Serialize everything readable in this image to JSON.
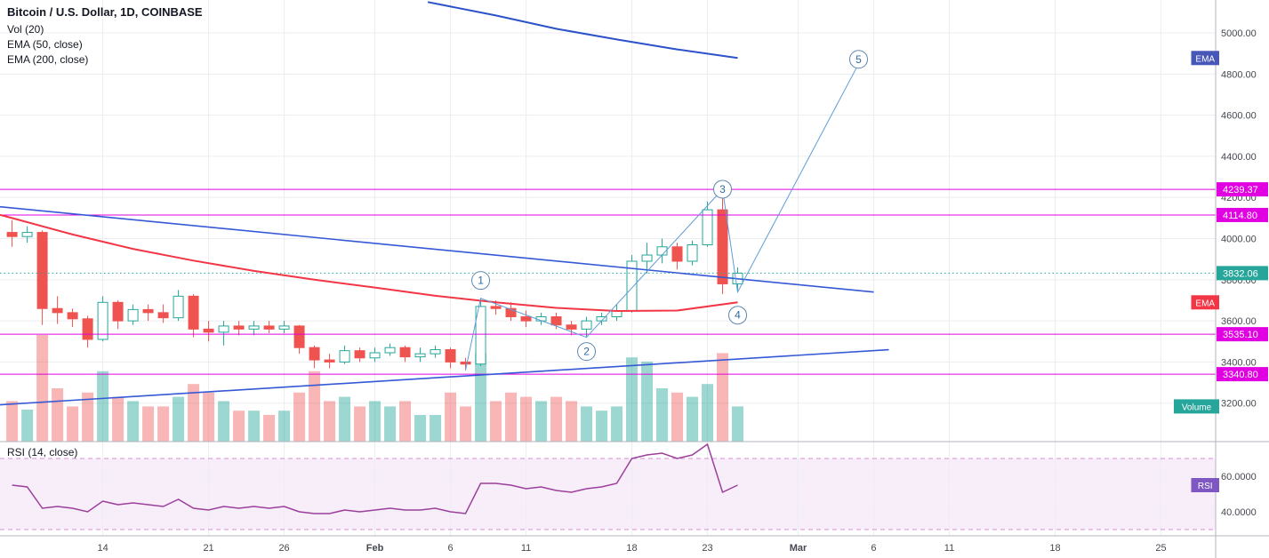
{
  "legend": {
    "title": "Bitcoin / U.S. Dollar, 1D, COINBASE",
    "vol": "Vol (20)",
    "ema50": "EMA (50, close)",
    "ema200": "EMA (200, close)",
    "rsi": "RSI (14, close)"
  },
  "badges": {
    "ema_top": "EMA",
    "ema_mid": "EMA",
    "volume": "Volume",
    "rsi": "RSI"
  },
  "colors": {
    "grid": "#ecedf0",
    "separator": "#b2b5be",
    "axis_text": "#44484f",
    "up": "#26a69a",
    "down": "#ef5350",
    "vol_up": "rgba(38,166,154,0.45)",
    "vol_down": "rgba(239,83,80,0.42)",
    "ema50": "#f23645",
    "ema200": "#2c52c9",
    "trend": "#3558d6",
    "level": "#e100e1",
    "current": "#26a69a",
    "wave": "#5e9cd6",
    "wave_circle": "#5e86ad",
    "wave_text": "#2f6a9e",
    "rsi": "#9c3f9c",
    "rsi_band": "rgba(156,39,176,0.08)",
    "rsi_dash": "#d78fd8",
    "badge_ema_top": "#4757b8",
    "badge_ema_mid": "#f23645",
    "badge_volume": "#26a69a",
    "badge_rsi": "#7e57c2"
  },
  "price_axis": [
    {
      "value": 5000,
      "label": "5000.00"
    },
    {
      "value": 4800,
      "label": "4800.00"
    },
    {
      "value": 4600,
      "label": "4600.00"
    },
    {
      "value": 4400,
      "label": "4400.00"
    },
    {
      "value": 4200,
      "label": "4200.00"
    },
    {
      "value": 4000,
      "label": "4000.00"
    },
    {
      "value": 3800,
      "label": "3800.00"
    },
    {
      "value": 3600,
      "label": "3600.00"
    },
    {
      "value": 3400,
      "label": "3400.00"
    },
    {
      "value": 3200,
      "label": "3200.00"
    }
  ],
  "rsi_axis": [
    {
      "value": 60,
      "label": "60.0000"
    },
    {
      "value": 40,
      "label": "40.0000"
    }
  ],
  "levels": [
    {
      "value": 4239.37,
      "label": "4239.37"
    },
    {
      "value": 4114.8,
      "label": "4114.80"
    },
    {
      "value": 3535.1,
      "label": "3535.10"
    },
    {
      "value": 3340.8,
      "label": "3340.80"
    }
  ],
  "current_price": {
    "value": 3832.06,
    "label": "3832.06"
  },
  "time_axis": [
    {
      "label": "14",
      "i": 6,
      "bold": false
    },
    {
      "label": "21",
      "i": 13,
      "bold": false
    },
    {
      "label": "26",
      "i": 18,
      "bold": false
    },
    {
      "label": "Feb",
      "i": 24,
      "bold": true
    },
    {
      "label": "6",
      "i": 29,
      "bold": false
    },
    {
      "label": "11",
      "i": 34,
      "bold": false
    },
    {
      "label": "18",
      "i": 41,
      "bold": false
    },
    {
      "label": "23",
      "i": 46,
      "bold": false
    },
    {
      "label": "Mar",
      "i": 52,
      "bold": true
    },
    {
      "label": "6",
      "i": 57,
      "bold": false
    },
    {
      "label": "11",
      "i": 62,
      "bold": false
    },
    {
      "label": "18",
      "i": 69,
      "bold": false
    },
    {
      "label": "25",
      "i": 76,
      "bold": false
    }
  ],
  "chart_data": {
    "type": "candlestick",
    "symbol": "Bitcoin / U.S. Dollar",
    "interval": "1D",
    "exchange": "COINBASE",
    "price_range": {
      "min": 3013,
      "max": 5160
    },
    "x_range": {
      "min": -0.8,
      "max": 79.62
    },
    "rsi_range": {
      "min": 26.5,
      "max": 79.5
    },
    "candle_columns": [
      "open",
      "high",
      "low",
      "close",
      "volume_rel"
    ],
    "candles": [
      [
        4030,
        4090,
        3960,
        4010,
        38
      ],
      [
        4010,
        4060,
        3980,
        4030,
        30
      ],
      [
        4030,
        4040,
        3580,
        3660,
        100
      ],
      [
        3660,
        3720,
        3585,
        3640,
        50
      ],
      [
        3640,
        3660,
        3570,
        3610,
        33
      ],
      [
        3610,
        3625,
        3470,
        3510,
        46
      ],
      [
        3510,
        3720,
        3500,
        3690,
        66
      ],
      [
        3690,
        3700,
        3560,
        3600,
        42
      ],
      [
        3600,
        3680,
        3580,
        3655,
        38
      ],
      [
        3655,
        3680,
        3600,
        3640,
        33
      ],
      [
        3640,
        3680,
        3590,
        3615,
        33
      ],
      [
        3615,
        3750,
        3600,
        3720,
        42
      ],
      [
        3720,
        3730,
        3520,
        3560,
        54
      ],
      [
        3560,
        3600,
        3500,
        3545,
        46
      ],
      [
        3545,
        3600,
        3480,
        3575,
        38
      ],
      [
        3575,
        3600,
        3530,
        3560,
        29
      ],
      [
        3560,
        3600,
        3530,
        3575,
        29
      ],
      [
        3575,
        3600,
        3540,
        3560,
        25
      ],
      [
        3560,
        3600,
        3540,
        3575,
        29
      ],
      [
        3575,
        3580,
        3440,
        3470,
        46
      ],
      [
        3470,
        3480,
        3370,
        3410,
        66
      ],
      [
        3410,
        3440,
        3370,
        3400,
        38
      ],
      [
        3400,
        3480,
        3390,
        3455,
        42
      ],
      [
        3455,
        3470,
        3400,
        3420,
        33
      ],
      [
        3420,
        3470,
        3400,
        3445,
        38
      ],
      [
        3445,
        3490,
        3430,
        3470,
        33
      ],
      [
        3470,
        3480,
        3400,
        3425,
        38
      ],
      [
        3425,
        3470,
        3400,
        3440,
        25
      ],
      [
        3440,
        3480,
        3420,
        3460,
        25
      ],
      [
        3460,
        3470,
        3370,
        3400,
        46
      ],
      [
        3400,
        3420,
        3360,
        3390,
        33
      ],
      [
        3390,
        3710,
        3380,
        3670,
        83
      ],
      [
        3670,
        3700,
        3630,
        3660,
        38
      ],
      [
        3660,
        3690,
        3600,
        3620,
        46
      ],
      [
        3620,
        3650,
        3570,
        3600,
        42
      ],
      [
        3600,
        3640,
        3580,
        3620,
        38
      ],
      [
        3620,
        3640,
        3560,
        3580,
        42
      ],
      [
        3580,
        3600,
        3530,
        3560,
        38
      ],
      [
        3560,
        3620,
        3520,
        3600,
        33
      ],
      [
        3600,
        3640,
        3580,
        3620,
        29
      ],
      [
        3620,
        3680,
        3600,
        3650,
        33
      ],
      [
        3650,
        3920,
        3640,
        3890,
        79
      ],
      [
        3890,
        3980,
        3830,
        3920,
        75
      ],
      [
        3920,
        4000,
        3880,
        3960,
        50
      ],
      [
        3960,
        3980,
        3850,
        3890,
        46
      ],
      [
        3890,
        3990,
        3870,
        3970,
        42
      ],
      [
        3970,
        4180,
        3960,
        4140,
        54
      ],
      [
        4140,
        4240,
        3730,
        3780,
        83
      ],
      [
        3780,
        3860,
        3740,
        3832,
        33
      ]
    ],
    "ema50": [
      [
        -0.8,
        4115
      ],
      [
        0,
        4100
      ],
      [
        4,
        4020
      ],
      [
        8,
        3950
      ],
      [
        12,
        3893
      ],
      [
        16,
        3843
      ],
      [
        20,
        3800
      ],
      [
        24,
        3762
      ],
      [
        28,
        3722
      ],
      [
        32,
        3690
      ],
      [
        36,
        3663
      ],
      [
        40,
        3648
      ],
      [
        44,
        3650
      ],
      [
        48,
        3690
      ]
    ],
    "ema200": [
      [
        27.5,
        5150
      ],
      [
        32,
        5085
      ],
      [
        36,
        5020
      ],
      [
        40,
        4968
      ],
      [
        44,
        4920
      ],
      [
        48,
        4878
      ]
    ],
    "trendlines": [
      [
        -0.8,
        4155,
        57,
        3740
      ],
      [
        -0.8,
        3192,
        58,
        3460
      ]
    ],
    "elliott": {
      "points": [
        {
          "i": 30,
          "p": 3360
        },
        {
          "i": 31,
          "p": 3710,
          "label": "1",
          "dy": -20
        },
        {
          "i": 38,
          "p": 3520,
          "label": "2",
          "dy": 16
        },
        {
          "i": 47,
          "p": 4240,
          "label": "3",
          "dy": 0
        },
        {
          "i": 48,
          "p": 3740,
          "label": "4",
          "dy": 26
        },
        {
          "i": 56,
          "p": 4850,
          "label": "5",
          "dy": -5
        }
      ]
    },
    "rsi_bands": [
      70,
      30
    ],
    "rsi": [
      55,
      54,
      42,
      43,
      42,
      40,
      46,
      44,
      45,
      44,
      43,
      47,
      42,
      41,
      43,
      42,
      43,
      42,
      43,
      40,
      39,
      39,
      41,
      40,
      41,
      42,
      41,
      41,
      42,
      40,
      39,
      56,
      56,
      55,
      53,
      54,
      52,
      51,
      53,
      54,
      56,
      70,
      72,
      73,
      70,
      72,
      78,
      51,
      55
    ]
  }
}
